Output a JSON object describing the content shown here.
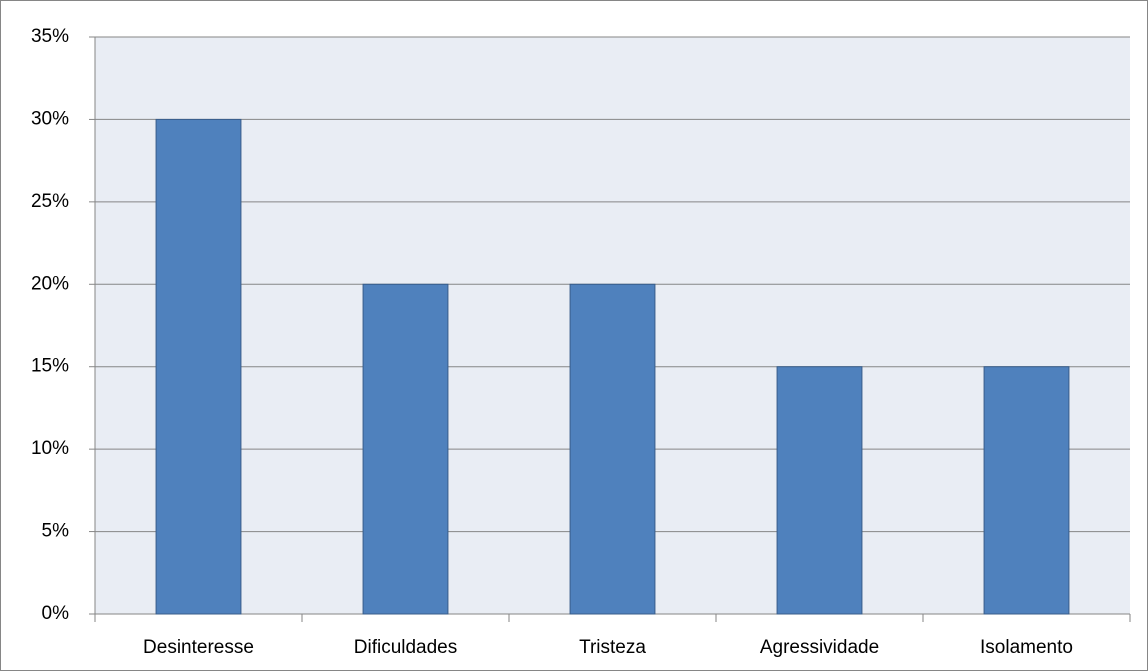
{
  "chart_data": {
    "type": "bar",
    "categories": [
      "Desinteresse",
      "Dificuldades",
      "Tristeza",
      "Agressividade",
      "Isolamento"
    ],
    "values": [
      30,
      20,
      20,
      15,
      15
    ],
    "color": "#4f81bd",
    "ylim": [
      0,
      35
    ],
    "yticks": [
      {
        "value": 0,
        "label": "0%"
      },
      {
        "value": 5,
        "label": "5%"
      },
      {
        "value": 10,
        "label": "10%"
      },
      {
        "value": 15,
        "label": "15%"
      },
      {
        "value": 20,
        "label": "20%"
      },
      {
        "value": 25,
        "label": "25%"
      },
      {
        "value": 30,
        "label": "30%"
      },
      {
        "value": 35,
        "label": "35%"
      }
    ],
    "grid": true
  }
}
